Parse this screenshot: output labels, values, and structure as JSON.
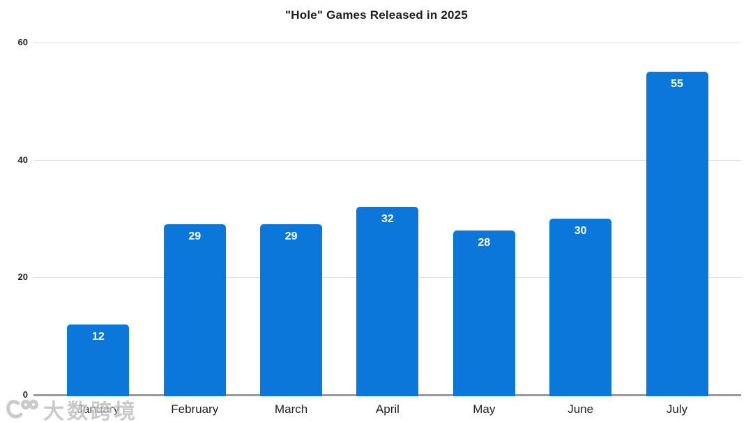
{
  "chart_data": {
    "type": "bar",
    "title": "\"Hole\" Games Released in 2025",
    "categories": [
      "January",
      "February",
      "March",
      "April",
      "May",
      "June",
      "July"
    ],
    "values": [
      12,
      29,
      29,
      32,
      28,
      30,
      55
    ],
    "xlabel": "",
    "ylabel": "",
    "ylim": [
      0,
      60
    ],
    "yticks": [
      0,
      20,
      40,
      60
    ],
    "grid": true,
    "legend": "none",
    "bar_color": "#0b77db",
    "value_label_color": "#ffffff",
    "gridline_color": "#e2e2e2",
    "axis_line_color": "#9a9a9a"
  },
  "watermark": {
    "logo": "100",
    "text": "大数跨境"
  }
}
